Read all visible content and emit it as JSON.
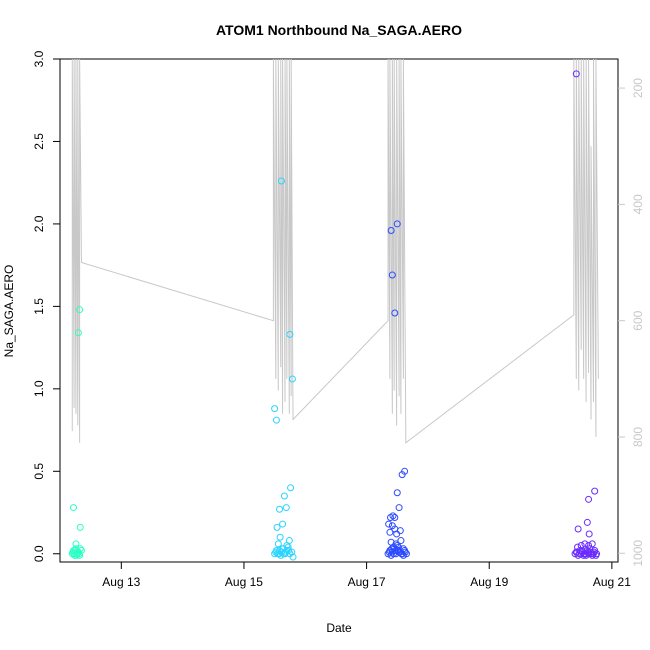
{
  "chart_data": {
    "type": "scatter",
    "title": "ATOM1 Northbound Na_SAGA.AERO",
    "xlabel": "Date",
    "ylabel": "Na_SAGA.AERO",
    "x_unit": "day of August 2016",
    "xlim": [
      12.0,
      21.1
    ],
    "ylim": [
      -0.05,
      3.0
    ],
    "x_ticks": [
      {
        "value": 13,
        "label": "Aug 13"
      },
      {
        "value": 15,
        "label": "Aug 15"
      },
      {
        "value": 17,
        "label": "Aug 17"
      },
      {
        "value": 19,
        "label": "Aug 19"
      },
      {
        "value": 21,
        "label": "Aug 21"
      }
    ],
    "y_ticks": [
      {
        "value": 0.0,
        "label": "0.0"
      },
      {
        "value": 0.5,
        "label": "0.5"
      },
      {
        "value": 1.0,
        "label": "1.0"
      },
      {
        "value": 1.5,
        "label": "1.5"
      },
      {
        "value": 2.0,
        "label": "2.0"
      },
      {
        "value": 2.5,
        "label": "2.5"
      },
      {
        "value": 3.0,
        "label": "3.0"
      }
    ],
    "right_axis": {
      "quantity": "pressure",
      "reversed": true,
      "lim": [
        1015,
        150
      ],
      "ticks": [
        {
          "value": 200,
          "label": "200"
        },
        {
          "value": 400,
          "label": "400"
        },
        {
          "value": 600,
          "label": "600"
        },
        {
          "value": 800,
          "label": "800"
        },
        {
          "value": 1000,
          "label": "1000"
        }
      ],
      "color": "#c8c8c8"
    },
    "grid": false,
    "legend": "none",
    "colors": {
      "flight_1": "#2bffc4",
      "flight_2": "#2ad4ff",
      "flight_3": "#2b4bff",
      "flight_4": "#6a2bff",
      "profile_line": "#c8c8c8"
    },
    "series": [
      {
        "color": "#2bffc4",
        "x": [
          12.2,
          12.22,
          12.24,
          12.26,
          12.28,
          12.3,
          12.32,
          12.35,
          12.21,
          12.23,
          12.25,
          12.27,
          12.29,
          12.31,
          12.33,
          12.22,
          12.26,
          12.33,
          12.3,
          12.32
        ],
        "y": [
          0.0,
          0.02,
          -0.01,
          0.03,
          0.0,
          0.01,
          -0.01,
          0.02,
          0.01,
          0.0,
          0.02,
          -0.01,
          0.01,
          0.0,
          0.03,
          0.28,
          0.06,
          0.16,
          1.34,
          1.48
        ]
      },
      {
        "color": "#2ad4ff",
        "x": [
          15.5,
          15.52,
          15.55,
          15.58,
          15.6,
          15.62,
          15.65,
          15.68,
          15.7,
          15.72,
          15.75,
          15.78,
          15.8,
          15.53,
          15.57,
          15.61,
          15.64,
          15.67,
          15.7,
          15.73,
          15.56,
          15.59,
          15.63,
          15.69,
          15.74,
          15.54,
          15.58,
          15.66,
          15.76,
          15.5,
          15.53,
          15.61,
          15.75,
          15.79
        ],
        "y": [
          0.0,
          0.01,
          0.0,
          0.02,
          -0.01,
          0.03,
          0.0,
          0.01,
          0.02,
          0.04,
          0.0,
          0.01,
          -0.02,
          0.02,
          0.0,
          0.01,
          0.03,
          0.0,
          0.05,
          0.02,
          0.06,
          0.1,
          0.18,
          0.28,
          0.08,
          0.16,
          0.27,
          0.35,
          0.4,
          0.88,
          0.81,
          2.26,
          1.33,
          1.06
        ]
      },
      {
        "color": "#2b4bff",
        "x": [
          17.35,
          17.38,
          17.4,
          17.42,
          17.45,
          17.48,
          17.5,
          17.52,
          17.55,
          17.58,
          17.6,
          17.62,
          17.65,
          17.37,
          17.41,
          17.44,
          17.47,
          17.5,
          17.53,
          17.57,
          17.4,
          17.44,
          17.48,
          17.52,
          17.56,
          17.6,
          17.63,
          17.36,
          17.39,
          17.43,
          17.46,
          17.49,
          17.53,
          17.58,
          17.62,
          17.38,
          17.42,
          17.46,
          17.5,
          17.55,
          17.42,
          17.46,
          17.5,
          17.4
        ],
        "y": [
          0.0,
          0.02,
          -0.01,
          0.01,
          0.03,
          0.0,
          0.02,
          0.04,
          0.01,
          0.0,
          -0.01,
          0.02,
          0.0,
          0.01,
          0.03,
          0.0,
          0.02,
          0.05,
          0.01,
          0.0,
          0.07,
          0.04,
          0.06,
          0.02,
          0.08,
          0.03,
          0.01,
          0.18,
          0.22,
          0.23,
          0.15,
          0.12,
          0.28,
          0.48,
          0.5,
          0.13,
          0.17,
          0.22,
          0.37,
          0.14,
          1.69,
          1.46,
          2.0,
          1.96
        ]
      },
      {
        "color": "#6a2bff",
        "x": [
          20.4,
          20.42,
          20.45,
          20.48,
          20.5,
          20.52,
          20.55,
          20.58,
          20.6,
          20.62,
          20.65,
          20.68,
          20.7,
          20.72,
          20.75,
          20.43,
          20.47,
          20.51,
          20.54,
          20.57,
          20.61,
          20.64,
          20.67,
          20.71,
          20.74,
          20.44,
          20.5,
          20.56,
          20.63,
          20.68,
          20.6,
          20.62,
          20.72,
          20.45,
          20.62,
          20.42
        ],
        "y": [
          0.0,
          0.01,
          -0.01,
          0.02,
          0.0,
          0.01,
          0.0,
          -0.01,
          0.02,
          0.0,
          0.01,
          -0.01,
          0.0,
          0.02,
          0.0,
          0.01,
          0.0,
          0.02,
          -0.01,
          0.0,
          0.01,
          0.03,
          0.0,
          0.01,
          -0.01,
          0.04,
          0.05,
          0.06,
          0.12,
          0.06,
          0.19,
          0.33,
          0.38,
          0.15,
          0.05,
          2.91
        ]
      }
    ],
    "profile_line": {
      "axis": "right",
      "color": "#c8c8c8",
      "x": [
        12.2,
        12.2,
        12.23,
        12.23,
        12.26,
        12.26,
        12.29,
        12.29,
        12.32,
        12.32,
        12.35,
        12.35,
        15.48,
        15.48,
        15.52,
        15.52,
        15.56,
        15.56,
        15.6,
        15.6,
        15.63,
        15.63,
        15.67,
        15.67,
        15.7,
        15.7,
        15.74,
        15.74,
        15.77,
        15.77,
        15.8,
        15.8,
        17.35,
        17.35,
        17.38,
        17.38,
        17.42,
        17.42,
        17.45,
        17.45,
        17.49,
        17.49,
        17.53,
        17.53,
        17.56,
        17.56,
        17.6,
        17.6,
        17.64,
        17.64,
        20.38,
        20.38,
        20.42,
        20.42,
        20.46,
        20.46,
        20.5,
        20.5,
        20.54,
        20.54,
        20.58,
        20.58,
        20.62,
        20.62,
        20.66,
        20.66,
        20.7,
        20.7,
        20.74,
        20.74,
        20.78
      ],
      "y": [
        790,
        150,
        750,
        150,
        760,
        150,
        780,
        150,
        810,
        150,
        500,
        500,
        600,
        150,
        700,
        150,
        720,
        150,
        680,
        150,
        760,
        150,
        740,
        150,
        700,
        150,
        760,
        150,
        730,
        150,
        770,
        770,
        600,
        150,
        700,
        150,
        760,
        150,
        720,
        150,
        780,
        150,
        730,
        150,
        760,
        150,
        700,
        150,
        810,
        810,
        590,
        150,
        700,
        150,
        720,
        150,
        650,
        150,
        700,
        150,
        740,
        150,
        690,
        150,
        770,
        300,
        740,
        150,
        800,
        150,
        700
      ]
    }
  }
}
